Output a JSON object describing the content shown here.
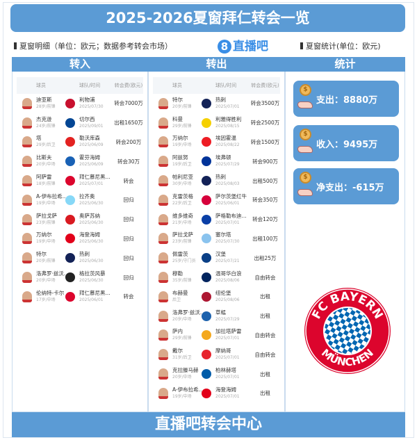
{
  "title": "2025-2026夏窗拜仁转会一览",
  "subtitle_left": "夏窗明细（单位：欧元；数据参考转会市场）",
  "brand": "直播吧",
  "brand_mark": "8",
  "subtitle_right": "夏窗统计(单位：欧元)",
  "columns": {
    "in": "转入",
    "out": "转出",
    "stats": "统计"
  },
  "table_headers": {
    "player": "球员",
    "club": "球队/时间",
    "fee": "转会费(欧元)"
  },
  "transfers_in": [
    {
      "name": "迪亚斯",
      "info": "28岁/前锋",
      "club": "利物浦",
      "date": "2025/07/30",
      "fee": "转会7000万",
      "color": "#c8102e"
    },
    {
      "name": "杰克逊",
      "info": "24岁/前锋",
      "club": "切尔西",
      "date": "2025/09/01",
      "fee": "出租1650万",
      "color": "#034694"
    },
    {
      "name": "塔",
      "info": "29岁/后卫",
      "club": "勒沃库森",
      "date": "2025/06/09",
      "fee": "转会200万",
      "color": "#e32221"
    },
    {
      "name": "比斯夫",
      "info": "20岁/中场",
      "club": "霍芬海姆",
      "date": "2025/06/09",
      "fee": "转会30万",
      "color": "#1961b5"
    },
    {
      "name": "阿萨雷",
      "info": "18岁/前锋",
      "club": "拜仁慕尼黑...",
      "date": "2025/07/01",
      "fee": "转会",
      "color": "#dc052d"
    },
    {
      "name": "A-伊布拉希...",
      "info": "19岁/中场",
      "club": "拉齐奥",
      "date": "2025/06/30",
      "fee": "回归",
      "color": "#87d8f7"
    },
    {
      "name": "萨拉戈萨",
      "info": "23岁/前锋",
      "club": "奥萨苏纳",
      "date": "2025/06/30",
      "fee": "回归",
      "color": "#d91a21"
    },
    {
      "name": "万纳尔",
      "info": "19岁/中场",
      "club": "海登海姆",
      "date": "2025/06/30",
      "fee": "回归",
      "color": "#e2001a"
    },
    {
      "name": "特尔",
      "info": "20岁/前锋",
      "club": "热刺",
      "date": "2025/06/30",
      "fee": "回归",
      "color": "#132257"
    },
    {
      "name": "洛弗罗·兹沃...",
      "info": "20岁/中场",
      "club": "格拉茨风暴",
      "date": "2025/06/30",
      "fee": "回归",
      "color": "#222222"
    },
    {
      "name": "伦纳特-卡尔",
      "info": "17岁/中场",
      "club": "拜仁慕尼黑...",
      "date": "2025/06/01",
      "fee": "转会",
      "color": "#dc052d"
    }
  ],
  "transfers_out": [
    {
      "name": "特尔",
      "info": "20岁/前锋",
      "club": "热刺",
      "date": "2025/07/01",
      "fee": "转会3500万",
      "color": "#132257"
    },
    {
      "name": "科曼",
      "info": "29岁/前锋",
      "club": "利雅得胜利",
      "date": "2025/08/15",
      "fee": "转会2500万",
      "color": "#f5d000"
    },
    {
      "name": "万纳尔",
      "info": "19岁/中场",
      "club": "埃因霍温",
      "date": "2025/08/22",
      "fee": "转会1500万",
      "color": "#ed1c24"
    },
    {
      "name": "阿兹努",
      "info": "19岁/后卫",
      "club": "埃弗顿",
      "date": "2025/07/29",
      "fee": "转会900万",
      "color": "#003399"
    },
    {
      "name": "帕利尼亚",
      "info": "30岁/中场",
      "club": "热刺",
      "date": "2025/08/03",
      "fee": "出租500万",
      "color": "#132257"
    },
    {
      "name": "克雷茨格",
      "info": "22岁/后卫",
      "club": "萨尔茨堡红牛",
      "date": "2025/06/01",
      "fee": "转会350万",
      "color": "#d6003b"
    },
    {
      "name": "维多维奇",
      "info": "21岁/中场",
      "club": "萨格勒布迪...",
      "date": "2025/07/01",
      "fee": "转会120万",
      "color": "#0a3fa6"
    },
    {
      "name": "萨拉戈萨",
      "info": "23岁/前锋",
      "club": "塞尔塔",
      "date": "2025/07/30",
      "fee": "出租100万",
      "color": "#8ac3ee"
    },
    {
      "name": "佩雷茨",
      "info": "25岁/守门员",
      "club": "汉堡",
      "date": "2025/07/21",
      "fee": "出租25万",
      "color": "#0a3f86"
    },
    {
      "name": "穆勒",
      "info": "35岁/前锋",
      "club": "温哥华白浪",
      "date": "2025/08/06",
      "fee": "自由转会",
      "color": "#00245e"
    },
    {
      "name": "布赫曼",
      "info": "后卫",
      "club": "纽伦堡",
      "date": "2025/08/06",
      "fee": "出租",
      "color": "#ad1732"
    },
    {
      "name": "洛弗罗·兹沃...",
      "info": "20岁/中场",
      "club": "草蜢",
      "date": "2025/07/29",
      "fee": "出租",
      "color": "#1d62ad"
    },
    {
      "name": "萨内",
      "info": "29岁/前锋",
      "club": "加拉塔萨雷",
      "date": "2025/07/01",
      "fee": "自由转会",
      "color": "#f4a81d"
    },
    {
      "name": "戴尔",
      "info": "31岁/后卫",
      "club": "摩纳哥",
      "date": "2025/07/01",
      "fee": "自由转会",
      "color": "#e7242d"
    },
    {
      "name": "克拉滕马赫",
      "info": "20岁/中场",
      "club": "柏林赫塔",
      "date": "2025/07/01",
      "fee": "出租",
      "color": "#005ca9"
    },
    {
      "name": "A-伊布拉希...",
      "info": "19岁/中场",
      "club": "海登海姆",
      "date": "2025/07/01",
      "fee": "出租",
      "color": "#e2001a"
    }
  ],
  "stats": {
    "spend": "支出：8880万",
    "income": "收入：9495万",
    "net": "净支出：-615万"
  },
  "logo_text": {
    "top": "FC BAYERN",
    "bottom": "MÜNCHEN"
  },
  "footer": "直播吧转会中心",
  "colors": {
    "accent": "#5b9bd5",
    "bayern_red": "#dc052d",
    "bayern_blue": "#0066b2"
  }
}
